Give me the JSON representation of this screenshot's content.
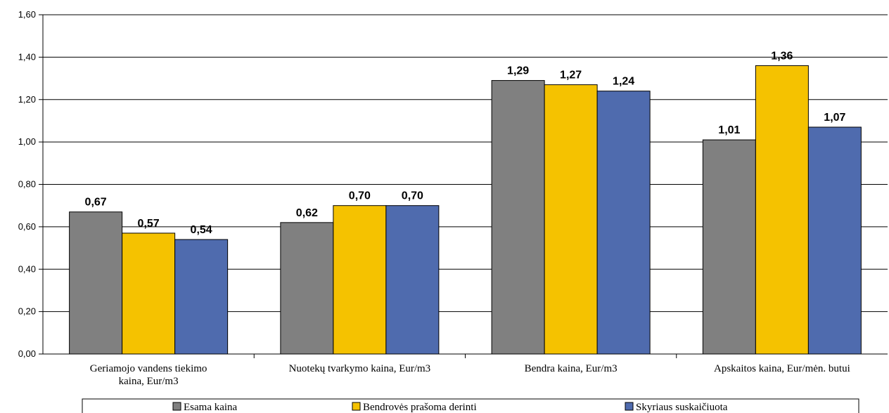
{
  "colors": {
    "series": [
      "#808080",
      "#f5c200",
      "#4f6bae"
    ],
    "gridline": "#000000",
    "bar_border": "#000000",
    "background": "#ffffff"
  },
  "chart_data": {
    "type": "bar",
    "categories": [
      [
        "Geriamojo vandens tiekimo",
        "kaina, Eur/m3"
      ],
      [
        "Nuotekų tvarkymo kaina, Eur/m3"
      ],
      [
        "Bendra kaina, Eur/m3"
      ],
      [
        "Apskaitos kaina, Eur/mėn. butui"
      ]
    ],
    "series": [
      {
        "name": "Esama kaina",
        "values": [
          0.67,
          0.62,
          1.29,
          1.01
        ]
      },
      {
        "name": "Bendrovės prašoma derinti",
        "values": [
          0.57,
          0.7,
          1.27,
          1.36
        ]
      },
      {
        "name": "Skyriaus suskaičiuota",
        "values": [
          0.54,
          0.7,
          1.24,
          1.07
        ]
      }
    ],
    "data_labels": [
      [
        "0,67",
        "0,62",
        "1,29",
        "1,01"
      ],
      [
        "0,57",
        "0,70",
        "1,27",
        "1,36"
      ],
      [
        "0,54",
        "0,70",
        "1,24",
        "1,07"
      ]
    ],
    "y_ticks": [
      "0,00",
      "0,20",
      "0,40",
      "0,60",
      "0,80",
      "1,00",
      "1,20",
      "1,40",
      "1,60"
    ],
    "ylim": [
      0,
      1.6
    ],
    "grid": true,
    "legend_position": "bottom"
  }
}
